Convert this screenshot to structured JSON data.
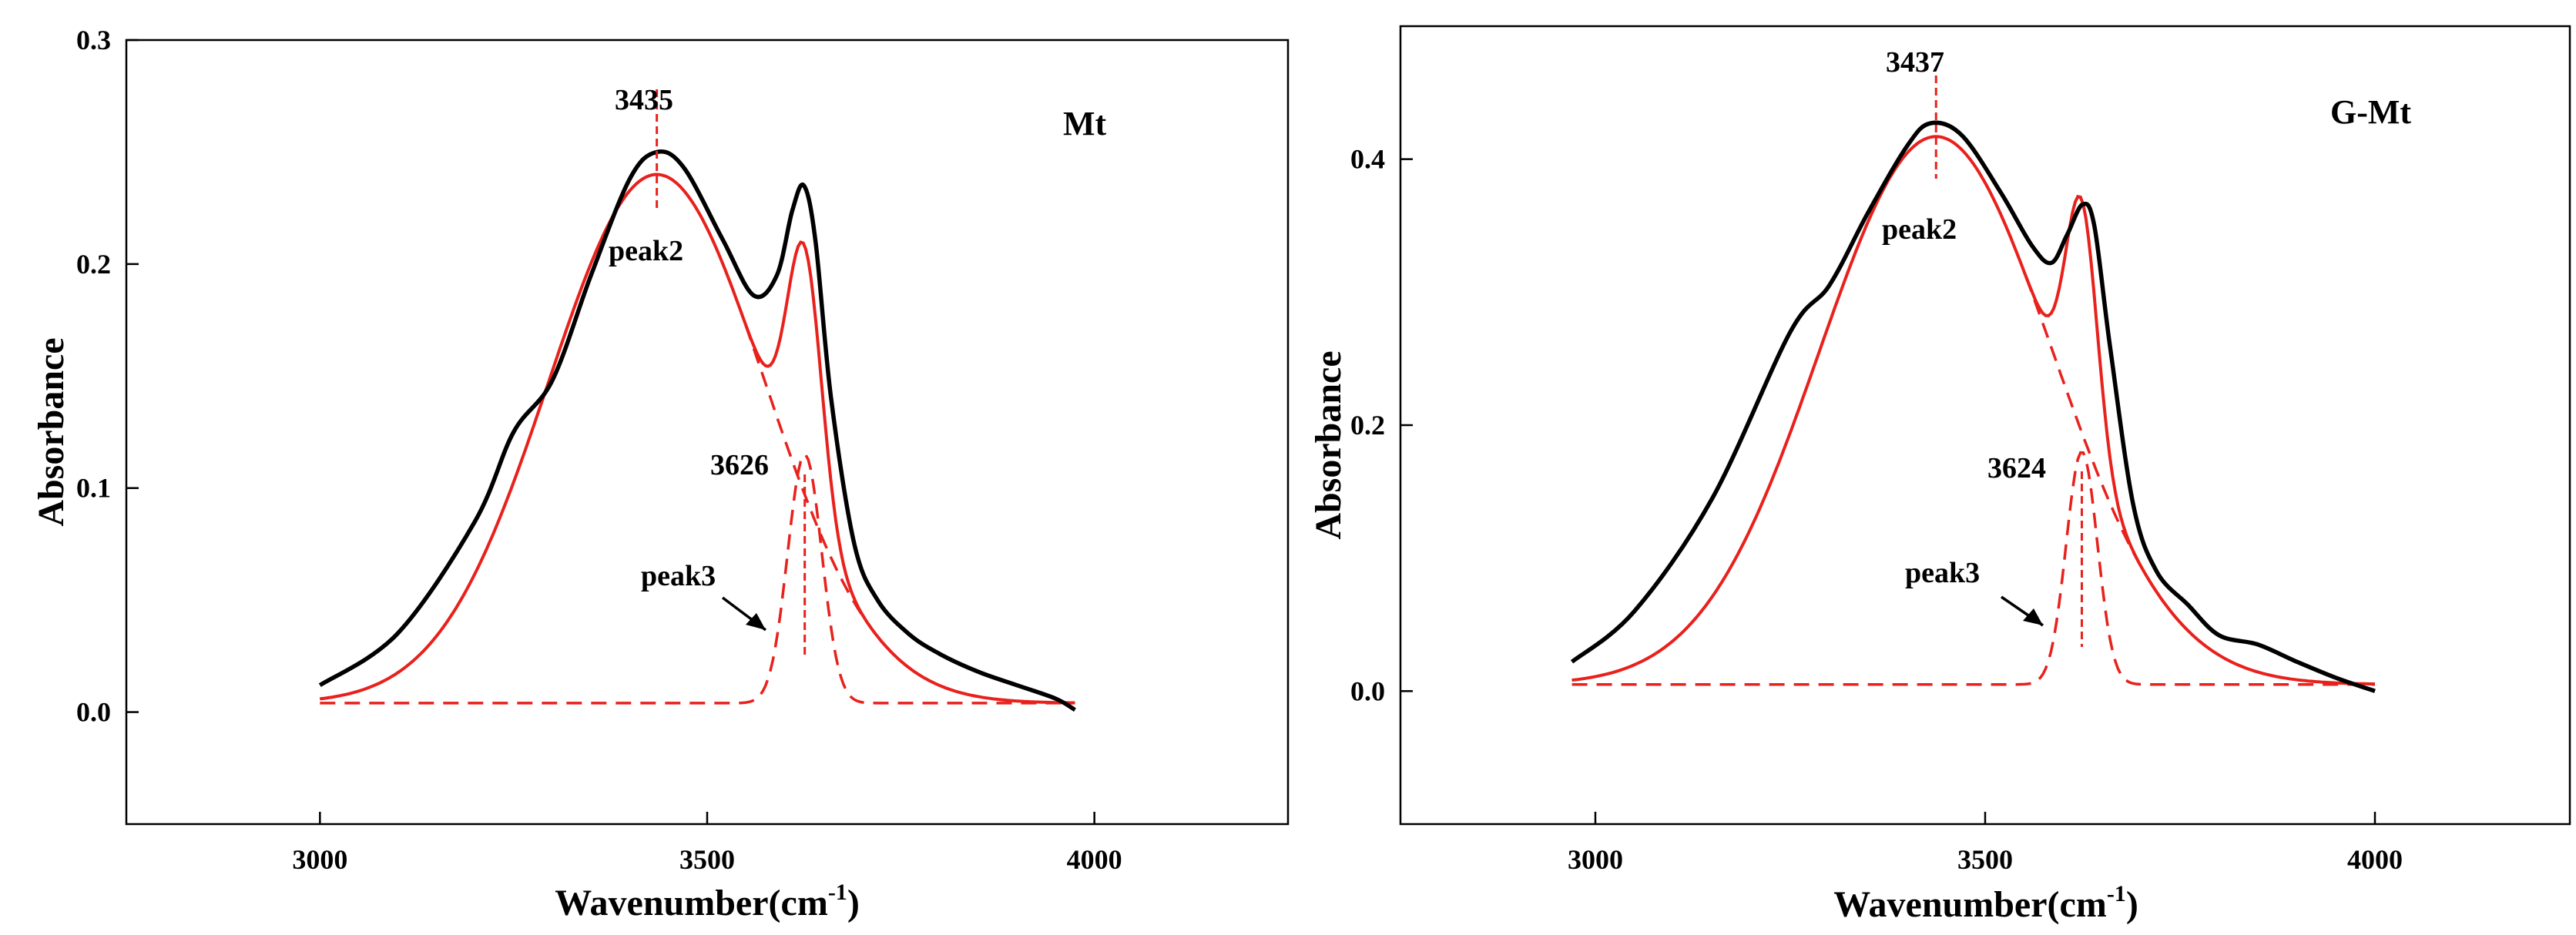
{
  "chart_data": [
    {
      "type": "line",
      "panel_label": "Mt",
      "xlabel": "Wavenumber(cm",
      "xlabel_sup": "-1",
      "xlabel_close": ")",
      "ylabel": "Absorbance",
      "xlim": [
        2750,
        4250
      ],
      "ylim": [
        -0.05,
        0.3
      ],
      "xticks": [
        3000,
        3500,
        4000
      ],
      "yticks": [
        0.0,
        0.1,
        0.2,
        0.3
      ],
      "ytick_labels": [
        "0.0",
        "0.1",
        "0.2",
        "0.3"
      ],
      "baseline": 0.004,
      "peaks": [
        {
          "name": "peak2",
          "position": 3435,
          "amplitude": 0.236,
          "sigma": 140
        },
        {
          "name": "peak3",
          "position": 3626,
          "amplitude": 0.111,
          "sigma": 22
        }
      ],
      "annotations": [
        {
          "text": "3435",
          "type": "peak-position"
        },
        {
          "text": "peak2",
          "type": "component-label"
        },
        {
          "text": "3626",
          "type": "peak-position"
        },
        {
          "text": "peak3",
          "type": "component-label"
        }
      ],
      "series": [
        {
          "name": "measured",
          "color": "#000000",
          "style": "solid",
          "x": [
            3000,
            3100,
            3200,
            3250,
            3300,
            3350,
            3400,
            3435,
            3470,
            3520,
            3560,
            3590,
            3610,
            3625,
            3640,
            3660,
            3690,
            3720,
            3760,
            3800,
            3850,
            3900,
            3950,
            3975
          ],
          "y": [
            0.012,
            0.035,
            0.085,
            0.125,
            0.148,
            0.195,
            0.238,
            0.25,
            0.243,
            0.211,
            0.186,
            0.195,
            0.224,
            0.235,
            0.21,
            0.14,
            0.075,
            0.05,
            0.035,
            0.026,
            0.018,
            0.012,
            0.006,
            0.001
          ]
        },
        {
          "name": "fit",
          "color": "#e8211c",
          "style": "solid"
        },
        {
          "name": "peak2",
          "color": "#e8211c",
          "style": "dashed"
        },
        {
          "name": "peak3",
          "color": "#e8211c",
          "style": "dashed"
        }
      ]
    },
    {
      "type": "line",
      "panel_label": "G-Mt",
      "xlabel": "Wavenumber(cm",
      "xlabel_sup": "-1",
      "xlabel_close": ")",
      "ylabel": "Absorbance",
      "xlim": [
        2750,
        4250
      ],
      "ylim": [
        -0.1,
        0.5
      ],
      "xticks": [
        3000,
        3500,
        4000
      ],
      "yticks": [
        0.0,
        0.2,
        0.4
      ],
      "ytick_labels": [
        "0.0",
        "0.2",
        "0.4"
      ],
      "baseline": 0.005,
      "peaks": [
        {
          "name": "peak2",
          "position": 3437,
          "amplitude": 0.412,
          "sigma": 150
        },
        {
          "name": "peak3",
          "position": 3624,
          "amplitude": 0.175,
          "sigma": 20
        }
      ],
      "annotations": [
        {
          "text": "3437",
          "type": "peak-position"
        },
        {
          "text": "peak2",
          "type": "component-label"
        },
        {
          "text": "3624",
          "type": "peak-position"
        },
        {
          "text": "peak3",
          "type": "component-label"
        }
      ],
      "series": [
        {
          "name": "measured",
          "color": "#000000",
          "style": "solid",
          "x": [
            2970,
            3050,
            3150,
            3250,
            3300,
            3350,
            3400,
            3430,
            3470,
            3520,
            3560,
            3585,
            3605,
            3625,
            3640,
            3660,
            3690,
            3720,
            3760,
            3800,
            3850,
            3900,
            3950,
            4000
          ],
          "y": [
            0.022,
            0.06,
            0.145,
            0.27,
            0.305,
            0.36,
            0.41,
            0.427,
            0.418,
            0.375,
            0.335,
            0.322,
            0.343,
            0.366,
            0.35,
            0.26,
            0.14,
            0.09,
            0.065,
            0.042,
            0.035,
            0.022,
            0.01,
            0.0
          ]
        },
        {
          "name": "fit",
          "color": "#e8211c",
          "style": "solid"
        },
        {
          "name": "peak2",
          "color": "#e8211c",
          "style": "dashed"
        },
        {
          "name": "peak3",
          "color": "#e8211c",
          "style": "dashed"
        }
      ]
    }
  ]
}
